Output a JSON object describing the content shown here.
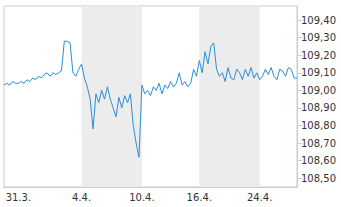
{
  "chart_data": {
    "type": "line",
    "categories": [
      null,
      null,
      null,
      null,
      null,
      "31.3.",
      null,
      null,
      null,
      null,
      null,
      null,
      null,
      null,
      null,
      null,
      null,
      null,
      null,
      null,
      null,
      null,
      null,
      null,
      null,
      null,
      null,
      "4.4.",
      null,
      null,
      null,
      null,
      null,
      null,
      null,
      null,
      null,
      null,
      null,
      null,
      null,
      null,
      null,
      null,
      null,
      null,
      null,
      null,
      "10.4.",
      null,
      null,
      null,
      null,
      null,
      null,
      null,
      null,
      null,
      null,
      null,
      null,
      null,
      null,
      null,
      null,
      null,
      null,
      null,
      "16.4.",
      null,
      null,
      null,
      null,
      null,
      null,
      null,
      null,
      null,
      null,
      null,
      null,
      null,
      null,
      null,
      null,
      null,
      null,
      null,
      null,
      "24.4.",
      null,
      null,
      null,
      null,
      null,
      null,
      null,
      null,
      null,
      null,
      null,
      null,
      null
    ],
    "values": [
      109.03,
      109.04,
      109.03,
      109.05,
      109.04,
      109.04,
      109.05,
      109.04,
      109.06,
      109.05,
      109.07,
      109.06,
      109.08,
      109.07,
      109.09,
      109.1,
      109.08,
      109.1,
      109.09,
      109.1,
      109.11,
      109.28,
      109.28,
      109.27,
      109.1,
      109.08,
      109.12,
      109.15,
      109.07,
      109.02,
      108.95,
      108.78,
      108.98,
      108.93,
      109.0,
      108.95,
      109.02,
      108.95,
      108.9,
      108.85,
      108.96,
      108.9,
      108.97,
      108.93,
      108.98,
      108.8,
      108.7,
      108.62,
      109.03,
      108.98,
      109.0,
      108.97,
      109.02,
      109.0,
      109.04,
      108.98,
      109.03,
      109.01,
      109.05,
      109.02,
      109.04,
      109.1,
      109.03,
      109.05,
      109.02,
      109.04,
      109.12,
      109.08,
      109.17,
      109.1,
      109.22,
      109.15,
      109.25,
      109.27,
      109.12,
      109.08,
      109.1,
      109.05,
      109.13,
      109.07,
      109.06,
      109.12,
      109.1,
      109.06,
      109.12,
      109.08,
      109.13,
      109.07,
      109.1,
      109.06,
      109.08,
      109.12,
      109.09,
      109.13,
      109.08,
      109.06,
      109.12,
      109.11,
      109.08,
      109.13,
      109.12,
      109.07,
      109.07
    ],
    "color": "#2b8fd6",
    "ylim": [
      108.45,
      109.48
    ],
    "yticks": [
      {
        "value": 108.5,
        "label": "108,50"
      },
      {
        "value": 108.6,
        "label": "108,60"
      },
      {
        "value": 108.7,
        "label": "108,70"
      },
      {
        "value": 108.8,
        "label": "108,80"
      },
      {
        "value": 108.9,
        "label": "108,90"
      },
      {
        "value": 109.0,
        "label": "109,00"
      },
      {
        "value": 109.1,
        "label": "109,10"
      },
      {
        "value": 109.2,
        "label": "109,20"
      },
      {
        "value": 109.3,
        "label": "109,30"
      },
      {
        "value": 109.4,
        "label": "109,40"
      }
    ],
    "grid": false
  }
}
